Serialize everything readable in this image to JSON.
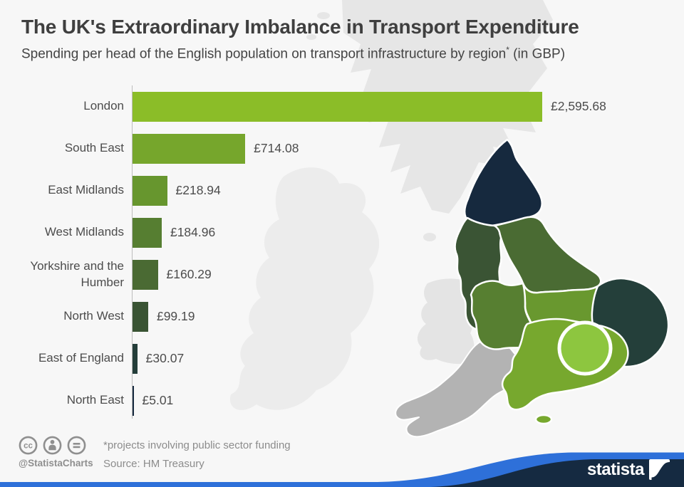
{
  "title": "The UK's Extraordinary Imbalance in Transport Expenditure",
  "subtitle": {
    "pre": "Spending per head of the English population on transport infrastructure by region",
    "sup": "*",
    "post": " (in GBP)"
  },
  "chart_data": {
    "type": "bar",
    "orientation": "horizontal",
    "title": "Spending per head of the English population on transport infrastructure by region (in GBP)",
    "categories": [
      "London",
      "South East",
      "East Midlands",
      "West Midlands",
      "Yorkshire and the Humber",
      "North West",
      "East of England",
      "North East"
    ],
    "values": [
      2595.68,
      714.08,
      218.94,
      184.96,
      160.29,
      99.19,
      30.07,
      5.01
    ],
    "value_labels": [
      "£2,595.68",
      "£714.08",
      "£218.94",
      "£184.96",
      "£160.29",
      "£99.19",
      "£30.07",
      "£5.01"
    ],
    "bar_colors": [
      "#8bbd28",
      "#76a62c",
      "#67962e",
      "#567e31",
      "#4a6a33",
      "#3a5434",
      "#243e3a",
      "#16293e"
    ],
    "xlim": [
      0,
      2595.68
    ],
    "grid": false,
    "legend": false
  },
  "map": {
    "name": "England regions choropleth",
    "regions": [
      {
        "id": "scotland",
        "name": "Scotland",
        "fill": "#e6e6e6",
        "kind": "context"
      },
      {
        "id": "scottish-isle-1",
        "name": "Scottish isle",
        "fill": "#e6e6e6",
        "kind": "context"
      },
      {
        "id": "scottish-isle-2",
        "name": "Scottish isle",
        "fill": "#e6e6e6",
        "kind": "context"
      },
      {
        "id": "ireland",
        "name": "Ireland",
        "fill": "#ececec",
        "kind": "context"
      },
      {
        "id": "isle-of-man",
        "name": "Isle of Man",
        "fill": "#e6e6e6",
        "kind": "context"
      },
      {
        "id": "wales",
        "name": "Wales",
        "fill": "#e4e4e4",
        "kind": "context"
      },
      {
        "id": "south-west",
        "name": "South West",
        "fill": "#b3b3b3",
        "kind": "no-data"
      },
      {
        "id": "north-east",
        "name": "North East",
        "fill": "#16293e",
        "kind": "data"
      },
      {
        "id": "north-west",
        "name": "North West",
        "fill": "#3a5434",
        "kind": "data"
      },
      {
        "id": "yorkshire",
        "name": "Yorkshire and the Humber",
        "fill": "#4a6b33",
        "kind": "data"
      },
      {
        "id": "east-midlands",
        "name": "East Midlands",
        "fill": "#69982f",
        "kind": "data"
      },
      {
        "id": "west-midlands",
        "name": "West Midlands",
        "fill": "#577f31",
        "kind": "data"
      },
      {
        "id": "east-of-england",
        "name": "East of England",
        "fill": "#243f3a",
        "kind": "data"
      },
      {
        "id": "south-east",
        "name": "South East",
        "fill": "#77a82e",
        "kind": "data"
      },
      {
        "id": "isle-of-wight",
        "name": "Isle of Wight",
        "fill": "#77a82e",
        "kind": "data"
      },
      {
        "id": "london",
        "name": "London",
        "fill": "#8dc63f",
        "kind": "data-highlight"
      }
    ]
  },
  "footer": {
    "license_icons": [
      "cc-icon",
      "attribution-person-icon",
      "no-derivatives-equals-icon"
    ],
    "handle": "@StatistaCharts",
    "note": "*projects involving public sector funding",
    "source": "Source: HM Treasury"
  },
  "branding": {
    "logo_text": "statista"
  },
  "colors": {
    "background": "#f7f7f7",
    "accent_blue": "#2e70d9",
    "brand_navy": "#152a41",
    "axis": "#bdbdbd",
    "title_text": "#3f3f3f",
    "label_text": "#4c4c4c",
    "muted_text": "#8c8c8c",
    "icon_gray": "#8f8f8f",
    "region_border": "#ffffff"
  }
}
